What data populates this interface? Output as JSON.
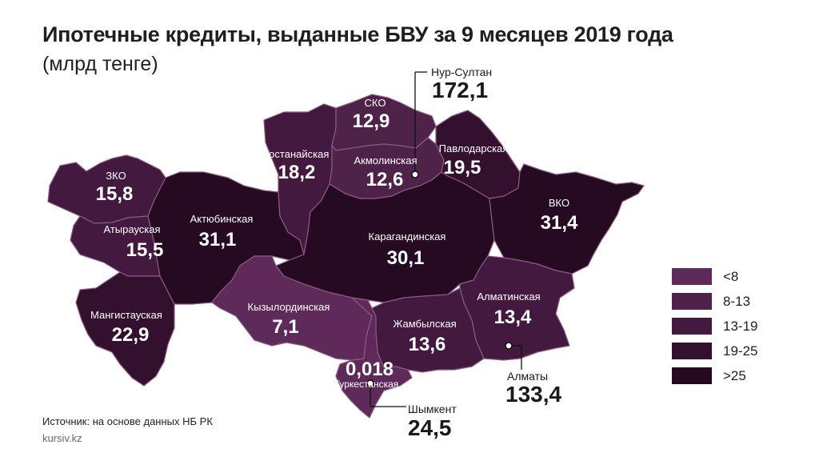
{
  "title": "Ипотечные кредиты, выданные БВУ за 9 месяцев 2019 года",
  "subtitle": "(млрд тенге)",
  "source": "Источник: на основе данных НБ РК",
  "site": "kursiv.kz",
  "colors": {
    "lt8": "#5e2a59",
    "b8_13": "#4f2249",
    "b13_19": "#44193f",
    "b19_25": "#34102f",
    "gt25": "#250a21",
    "border": "#8a5a83",
    "text_on_map": "#ffffff"
  },
  "legend": [
    {
      "label": "<8",
      "color": "#5e2a59"
    },
    {
      "label": "8-13",
      "color": "#4f2249"
    },
    {
      "label": "13-19",
      "color": "#44193f"
    },
    {
      "label": "19-25",
      "color": "#34102f"
    },
    {
      "label": ">25",
      "color": "#250a21"
    }
  ],
  "regions": {
    "zko": {
      "name": "ЗКО",
      "value": "15,8"
    },
    "atyrau": {
      "name": "Атырауская",
      "value": "15,5"
    },
    "mangistau": {
      "name": "Мангистауская",
      "value": "22,9"
    },
    "aktobe": {
      "name": "Актюбинская",
      "value": "31,1"
    },
    "kostanay": {
      "name": "Костанайская",
      "value": "18,2"
    },
    "sko": {
      "name": "СКО",
      "value": "12,9"
    },
    "akmola": {
      "name": "Акмолинская",
      "value": "12,6"
    },
    "pavlodar": {
      "name": "Павлодарская",
      "value": "19,5"
    },
    "vko": {
      "name": "ВКО",
      "value": "31,4"
    },
    "karaganda": {
      "name": "Карагандинская",
      "value": "30,1"
    },
    "kyzylorda": {
      "name": "Кызылординская",
      "value": "7,1"
    },
    "zhambyl": {
      "name": "Жамбылская",
      "value": "13,6"
    },
    "almaty_obl": {
      "name": "Алматинская",
      "value": "13,4"
    },
    "turkestan": {
      "name": "Туркестанская",
      "value": "0,018"
    }
  },
  "cities": {
    "nur_sultan": {
      "name": "Нур-Султан",
      "value": "172,1"
    },
    "almaty": {
      "name": "Алматы",
      "value": "133,4"
    },
    "shymkent": {
      "name": "Шымкент",
      "value": "24,5"
    }
  }
}
